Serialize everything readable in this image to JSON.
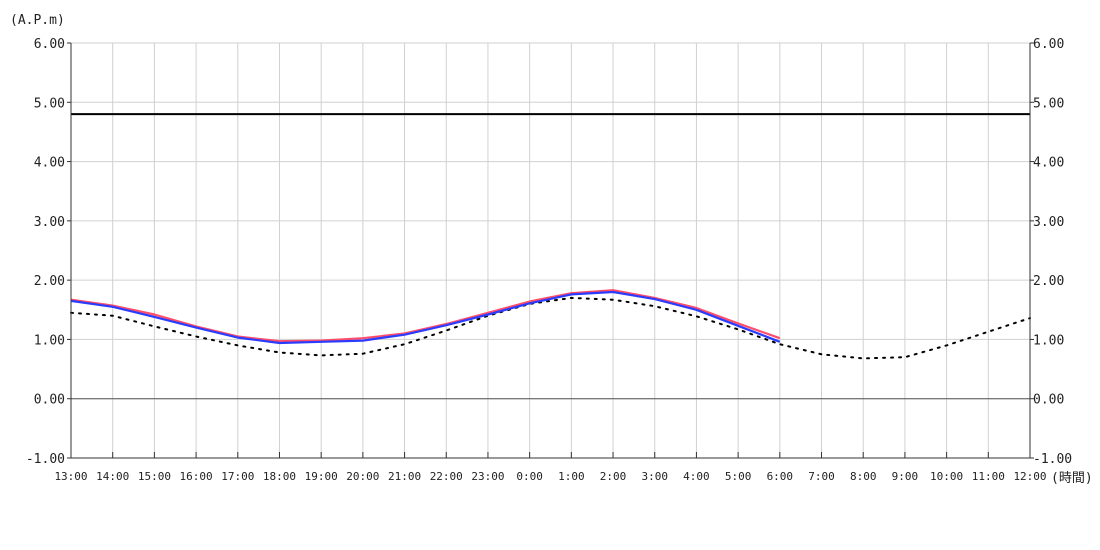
{
  "chart_data": {
    "type": "line",
    "ylabel": "(A.P.m)",
    "xlabel": "(時間)",
    "ylim": [
      -1.0,
      6.0
    ],
    "yticks": [
      "6.00",
      "5.00",
      "4.00",
      "3.00",
      "2.00",
      "1.00",
      "0.00",
      "-1.00"
    ],
    "ytick_values": [
      6,
      5,
      4,
      3,
      2,
      1,
      0,
      -1
    ],
    "categories": [
      "13:00",
      "14:00",
      "15:00",
      "16:00",
      "17:00",
      "18:00",
      "19:00",
      "20:00",
      "21:00",
      "22:00",
      "23:00",
      "0:00",
      "1:00",
      "2:00",
      "3:00",
      "4:00",
      "5:00",
      "6:00",
      "7:00",
      "8:00",
      "9:00",
      "10:00",
      "11:00",
      "12:00"
    ],
    "grid": true,
    "reference_lines": [
      {
        "value": 4.8,
        "color": "#000000"
      },
      {
        "value": 0.0,
        "color": "#555555"
      }
    ],
    "series": [
      {
        "style": "dotted",
        "color": "#000000",
        "values": [
          1.45,
          1.4,
          1.22,
          1.05,
          0.9,
          0.78,
          0.73,
          0.76,
          0.92,
          1.15,
          1.4,
          1.6,
          1.7,
          1.67,
          1.56,
          1.39,
          1.17,
          0.92,
          0.75,
          0.68,
          0.7,
          0.9,
          1.13,
          1.36
        ]
      },
      {
        "style": "solid",
        "color": "#ff4d6a",
        "values": [
          1.67,
          1.57,
          1.42,
          1.22,
          1.05,
          0.97,
          0.98,
          1.02,
          1.1,
          1.26,
          1.45,
          1.64,
          1.78,
          1.83,
          1.7,
          1.53,
          1.27,
          1.02,
          null,
          null,
          null,
          null,
          null,
          null
        ]
      },
      {
        "style": "solid",
        "color": "#2a3cff",
        "values": [
          1.65,
          1.55,
          1.38,
          1.2,
          1.03,
          0.94,
          0.96,
          0.98,
          1.08,
          1.24,
          1.42,
          1.61,
          1.76,
          1.8,
          1.68,
          1.5,
          1.23,
          0.96,
          null,
          null,
          null,
          null,
          null,
          null
        ]
      }
    ]
  }
}
